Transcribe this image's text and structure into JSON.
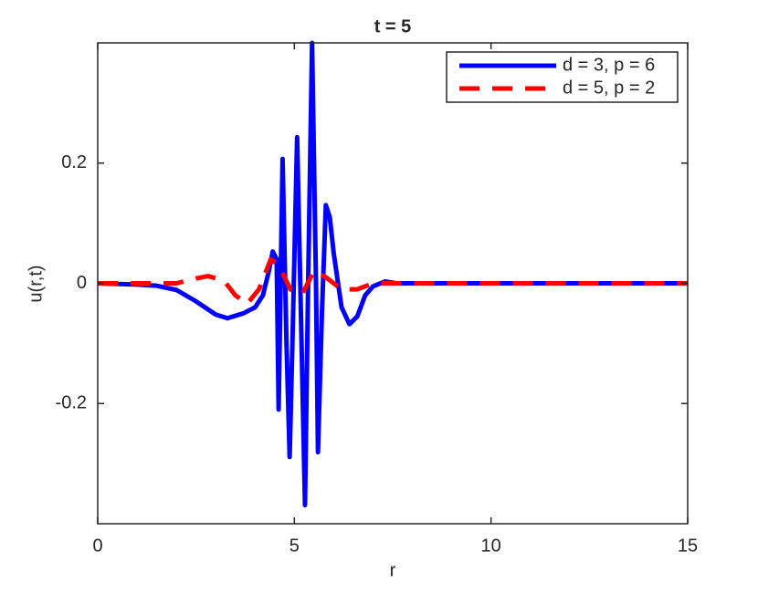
{
  "chart_data": {
    "type": "line",
    "title": "t = 5",
    "x_label": "r",
    "y_label": "u(r,t)",
    "xlim": [
      0,
      15
    ],
    "ylim": [
      -0.4,
      0.4
    ],
    "xticks": [
      0,
      5,
      10,
      15
    ],
    "yticks": [
      -0.2,
      0,
      0.2
    ],
    "grid": false,
    "legend": "northeast",
    "series": [
      {
        "name": "d = 3, p = 6",
        "color": "#0000ff",
        "dash": "solid",
        "x": [
          0,
          1,
          1.5,
          2,
          2.5,
          3,
          3.3,
          3.7,
          4,
          4.2,
          4.35,
          4.45,
          4.55,
          4.6,
          4.7,
          4.8,
          4.88,
          4.95,
          5.07,
          5.15,
          5.27,
          5.35,
          5.45,
          5.55,
          5.6,
          5.7,
          5.8,
          5.9,
          6,
          6.2,
          6.4,
          6.6,
          6.8,
          7,
          7.3,
          7.6,
          8,
          10,
          12,
          15
        ],
        "values": [
          0,
          -0.002,
          -0.004,
          -0.011,
          -0.03,
          -0.052,
          -0.058,
          -0.05,
          -0.04,
          -0.02,
          0.02,
          0.053,
          0.04,
          -0.21,
          0.207,
          -0.1,
          -0.289,
          -0.1,
          0.243,
          0,
          -0.369,
          0,
          0.4,
          0,
          -0.281,
          -0.05,
          0.13,
          0.11,
          0.05,
          -0.04,
          -0.068,
          -0.055,
          -0.02,
          -0.005,
          0.003,
          0,
          0,
          0,
          0,
          0
        ]
      },
      {
        "name": "d = 5, p = 2",
        "color": "#ff0000",
        "dash": "dashed",
        "x": [
          0,
          1,
          2,
          2.5,
          2.8,
          3.2,
          3.5,
          3.8,
          4.1,
          4.4,
          4.6,
          4.9,
          5.2,
          5.5,
          5.8,
          6.2,
          6.6,
          7,
          8,
          10,
          12,
          15
        ],
        "values": [
          0,
          0,
          0,
          0.008,
          0.012,
          0.005,
          -0.02,
          -0.034,
          -0.01,
          0.04,
          0.03,
          -0.01,
          -0.018,
          0.021,
          0.01,
          -0.01,
          -0.01,
          0,
          0,
          0,
          0,
          0
        ]
      }
    ]
  }
}
